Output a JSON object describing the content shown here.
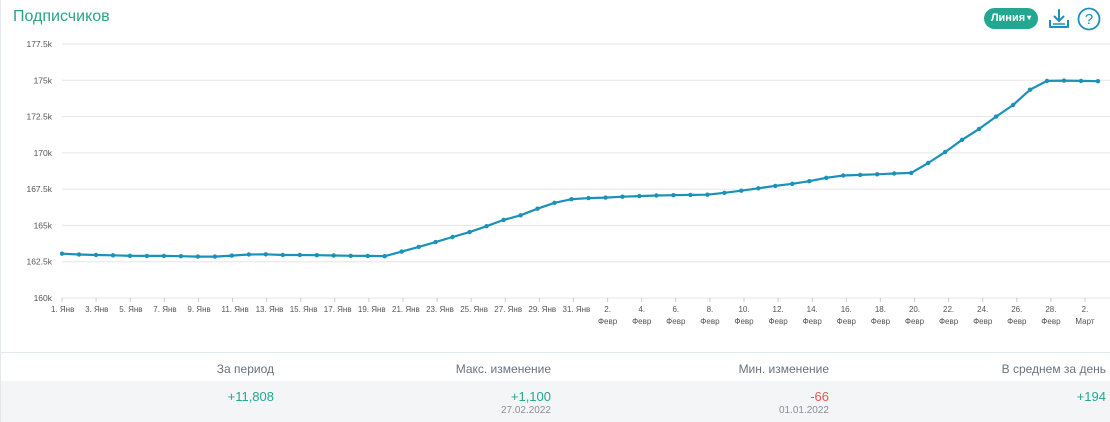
{
  "header": {
    "title": "Подписчиков",
    "type_select_label": "Линия",
    "download_icon": "download-icon",
    "help_icon": "help-icon"
  },
  "colors": {
    "accent": "#22a890",
    "line": "#1a91b9",
    "negative": "#e05a4f"
  },
  "chart_data": {
    "type": "line",
    "title": "",
    "xlabel": "",
    "ylabel": "",
    "ylim": [
      160000,
      177500
    ],
    "grid": true,
    "y_ticks": [
      "160k",
      "162.5k",
      "165k",
      "167.5k",
      "170k",
      "172.5k",
      "175k",
      "177.5k"
    ],
    "x_ticks": [
      "1. Янв",
      "3. Янв",
      "5. Янв",
      "7. Янв",
      "9. Янв",
      "11. Янв",
      "13. Янв",
      "15. Янв",
      "17. Янв",
      "19. Янв",
      "21. Янв",
      "23. Янв",
      "25. Янв",
      "27. Янв",
      "29. Янв",
      "31. Янв",
      "2. Февр",
      "4. Февр",
      "6. Февр",
      "8. Февр",
      "10. Февр",
      "12. Февр",
      "14. Февр",
      "16. Февр",
      "18. Февр",
      "20. Февр",
      "22. Февр",
      "24. Февр",
      "26. Февр",
      "28. Февр",
      "2. Март"
    ],
    "series": [
      {
        "values": [
          163050,
          163000,
          162960,
          162940,
          162910,
          162900,
          162900,
          162880,
          162850,
          162850,
          162920,
          163000,
          163010,
          162960,
          162960,
          162950,
          162930,
          162910,
          162900,
          162880,
          163200,
          163520,
          163850,
          164200,
          164540,
          164950,
          165380,
          165700,
          166150,
          166560,
          166810,
          166880,
          166920,
          166980,
          167020,
          167060,
          167080,
          167100,
          167120,
          167250,
          167390,
          167560,
          167720,
          167870,
          168050,
          168280,
          168440,
          168480,
          168520,
          168580,
          168620,
          169300,
          170050,
          170900,
          171650,
          172500,
          173300,
          174350,
          174960,
          174980,
          174960,
          174940
        ]
      }
    ]
  },
  "stats": [
    {
      "label": "За период",
      "value": "+11,808",
      "date": "",
      "tone": "green"
    },
    {
      "label": "Макс. изменение",
      "value": "+1,100",
      "date": "27.02.2022",
      "tone": "green"
    },
    {
      "label": "Мин. изменение",
      "value": "-66",
      "date": "01.01.2022",
      "tone": "red"
    },
    {
      "label": "В среднем за день",
      "value": "+194",
      "date": "",
      "tone": "green"
    }
  ]
}
